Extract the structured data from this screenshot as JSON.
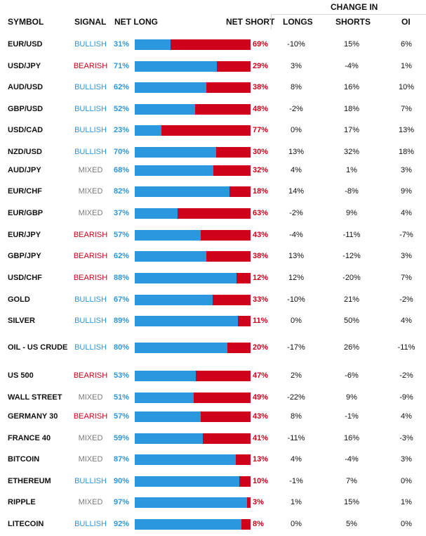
{
  "headers": {
    "symbol": "SYMBOL",
    "signal": "SIGNAL",
    "net_long": "NET LONG",
    "net_short": "NET SHORT",
    "change_in": "CHANGE IN",
    "longs": "LONGS",
    "shorts": "SHORTS",
    "oi": "OI"
  },
  "colors": {
    "long": "#2b97de",
    "short": "#d0021b",
    "mixed": "#7a7a7a"
  },
  "rows": [
    {
      "symbol": "EUR/USD",
      "signal": "BULLISH",
      "net_long": "31%",
      "net_short": "69%",
      "long_frac": 0.31,
      "longs": "-10%",
      "shorts": "15%",
      "oi": "6%"
    },
    {
      "symbol": "USD/JPY",
      "signal": "BEARISH",
      "net_long": "71%",
      "net_short": "29%",
      "long_frac": 0.71,
      "longs": "3%",
      "shorts": "-4%",
      "oi": "1%"
    },
    {
      "symbol": "AUD/USD",
      "signal": "BULLISH",
      "net_long": "62%",
      "net_short": "38%",
      "long_frac": 0.62,
      "longs": "8%",
      "shorts": "16%",
      "oi": "10%"
    },
    {
      "symbol": "GBP/USD",
      "signal": "BULLISH",
      "net_long": "52%",
      "net_short": "48%",
      "long_frac": 0.52,
      "longs": "-2%",
      "shorts": "18%",
      "oi": "7%"
    },
    {
      "symbol": "USD/CAD",
      "signal": "BULLISH",
      "net_long": "23%",
      "net_short": "77%",
      "long_frac": 0.23,
      "longs": "0%",
      "shorts": "17%",
      "oi": "13%"
    },
    {
      "symbol": "NZD/USD",
      "signal": "BULLISH",
      "net_long": "70%",
      "net_short": "30%",
      "long_frac": 0.7,
      "longs": "13%",
      "shorts": "32%",
      "oi": "18%"
    },
    {
      "symbol": "AUD/JPY",
      "signal": "MIXED",
      "net_long": "68%",
      "net_short": "32%",
      "long_frac": 0.68,
      "longs": "4%",
      "shorts": "1%",
      "oi": "3%"
    },
    {
      "symbol": "EUR/CHF",
      "signal": "MIXED",
      "net_long": "82%",
      "net_short": "18%",
      "long_frac": 0.82,
      "longs": "14%",
      "shorts": "-8%",
      "oi": "9%"
    },
    {
      "symbol": "EUR/GBP",
      "signal": "MIXED",
      "net_long": "37%",
      "net_short": "63%",
      "long_frac": 0.37,
      "longs": "-2%",
      "shorts": "9%",
      "oi": "4%"
    },
    {
      "symbol": "EUR/JPY",
      "signal": "BEARISH",
      "net_long": "57%",
      "net_short": "43%",
      "long_frac": 0.57,
      "longs": "-4%",
      "shorts": "-11%",
      "oi": "-7%"
    },
    {
      "symbol": "GBP/JPY",
      "signal": "BEARISH",
      "net_long": "62%",
      "net_short": "38%",
      "long_frac": 0.62,
      "longs": "13%",
      "shorts": "-12%",
      "oi": "3%"
    },
    {
      "symbol": "USD/CHF",
      "signal": "BEARISH",
      "net_long": "88%",
      "net_short": "12%",
      "long_frac": 0.88,
      "longs": "12%",
      "shorts": "-20%",
      "oi": "7%"
    },
    {
      "symbol": "GOLD",
      "signal": "BULLISH",
      "net_long": "67%",
      "net_short": "33%",
      "long_frac": 0.67,
      "longs": "-10%",
      "shorts": "21%",
      "oi": "-2%"
    },
    {
      "symbol": "SILVER",
      "signal": "BULLISH",
      "net_long": "89%",
      "net_short": "11%",
      "long_frac": 0.89,
      "longs": "0%",
      "shorts": "50%",
      "oi": "4%"
    },
    {
      "symbol": "OIL - US CRUDE",
      "signal": "BULLISH",
      "net_long": "80%",
      "net_short": "20%",
      "long_frac": 0.8,
      "longs": "-17%",
      "shorts": "26%",
      "oi": "-11%"
    },
    {
      "symbol": "US 500",
      "signal": "BEARISH",
      "net_long": "53%",
      "net_short": "47%",
      "long_frac": 0.53,
      "longs": "2%",
      "shorts": "-6%",
      "oi": "-2%"
    },
    {
      "symbol": "WALL STREET",
      "signal": "MIXED",
      "net_long": "51%",
      "net_short": "49%",
      "long_frac": 0.51,
      "longs": "-22%",
      "shorts": "9%",
      "oi": "-9%"
    },
    {
      "symbol": "GERMANY 30",
      "signal": "BEARISH",
      "net_long": "57%",
      "net_short": "43%",
      "long_frac": 0.57,
      "longs": "8%",
      "shorts": "-1%",
      "oi": "4%"
    },
    {
      "symbol": "FRANCE 40",
      "signal": "MIXED",
      "net_long": "59%",
      "net_short": "41%",
      "long_frac": 0.59,
      "longs": "-11%",
      "shorts": "16%",
      "oi": "-3%"
    },
    {
      "symbol": "BITCOIN",
      "signal": "MIXED",
      "net_long": "87%",
      "net_short": "13%",
      "long_frac": 0.87,
      "longs": "4%",
      "shorts": "-4%",
      "oi": "3%"
    },
    {
      "symbol": "ETHEREUM",
      "signal": "BULLISH",
      "net_long": "90%",
      "net_short": "10%",
      "long_frac": 0.9,
      "longs": "-1%",
      "shorts": "7%",
      "oi": "0%"
    },
    {
      "symbol": "RIPPLE",
      "signal": "MIXED",
      "net_long": "97%",
      "net_short": "3%",
      "long_frac": 0.97,
      "longs": "1%",
      "shorts": "15%",
      "oi": "1%"
    },
    {
      "symbol": "LITECOIN",
      "signal": "BULLISH",
      "net_long": "92%",
      "net_short": "8%",
      "long_frac": 0.92,
      "longs": "0%",
      "shorts": "5%",
      "oi": "0%"
    }
  ]
}
